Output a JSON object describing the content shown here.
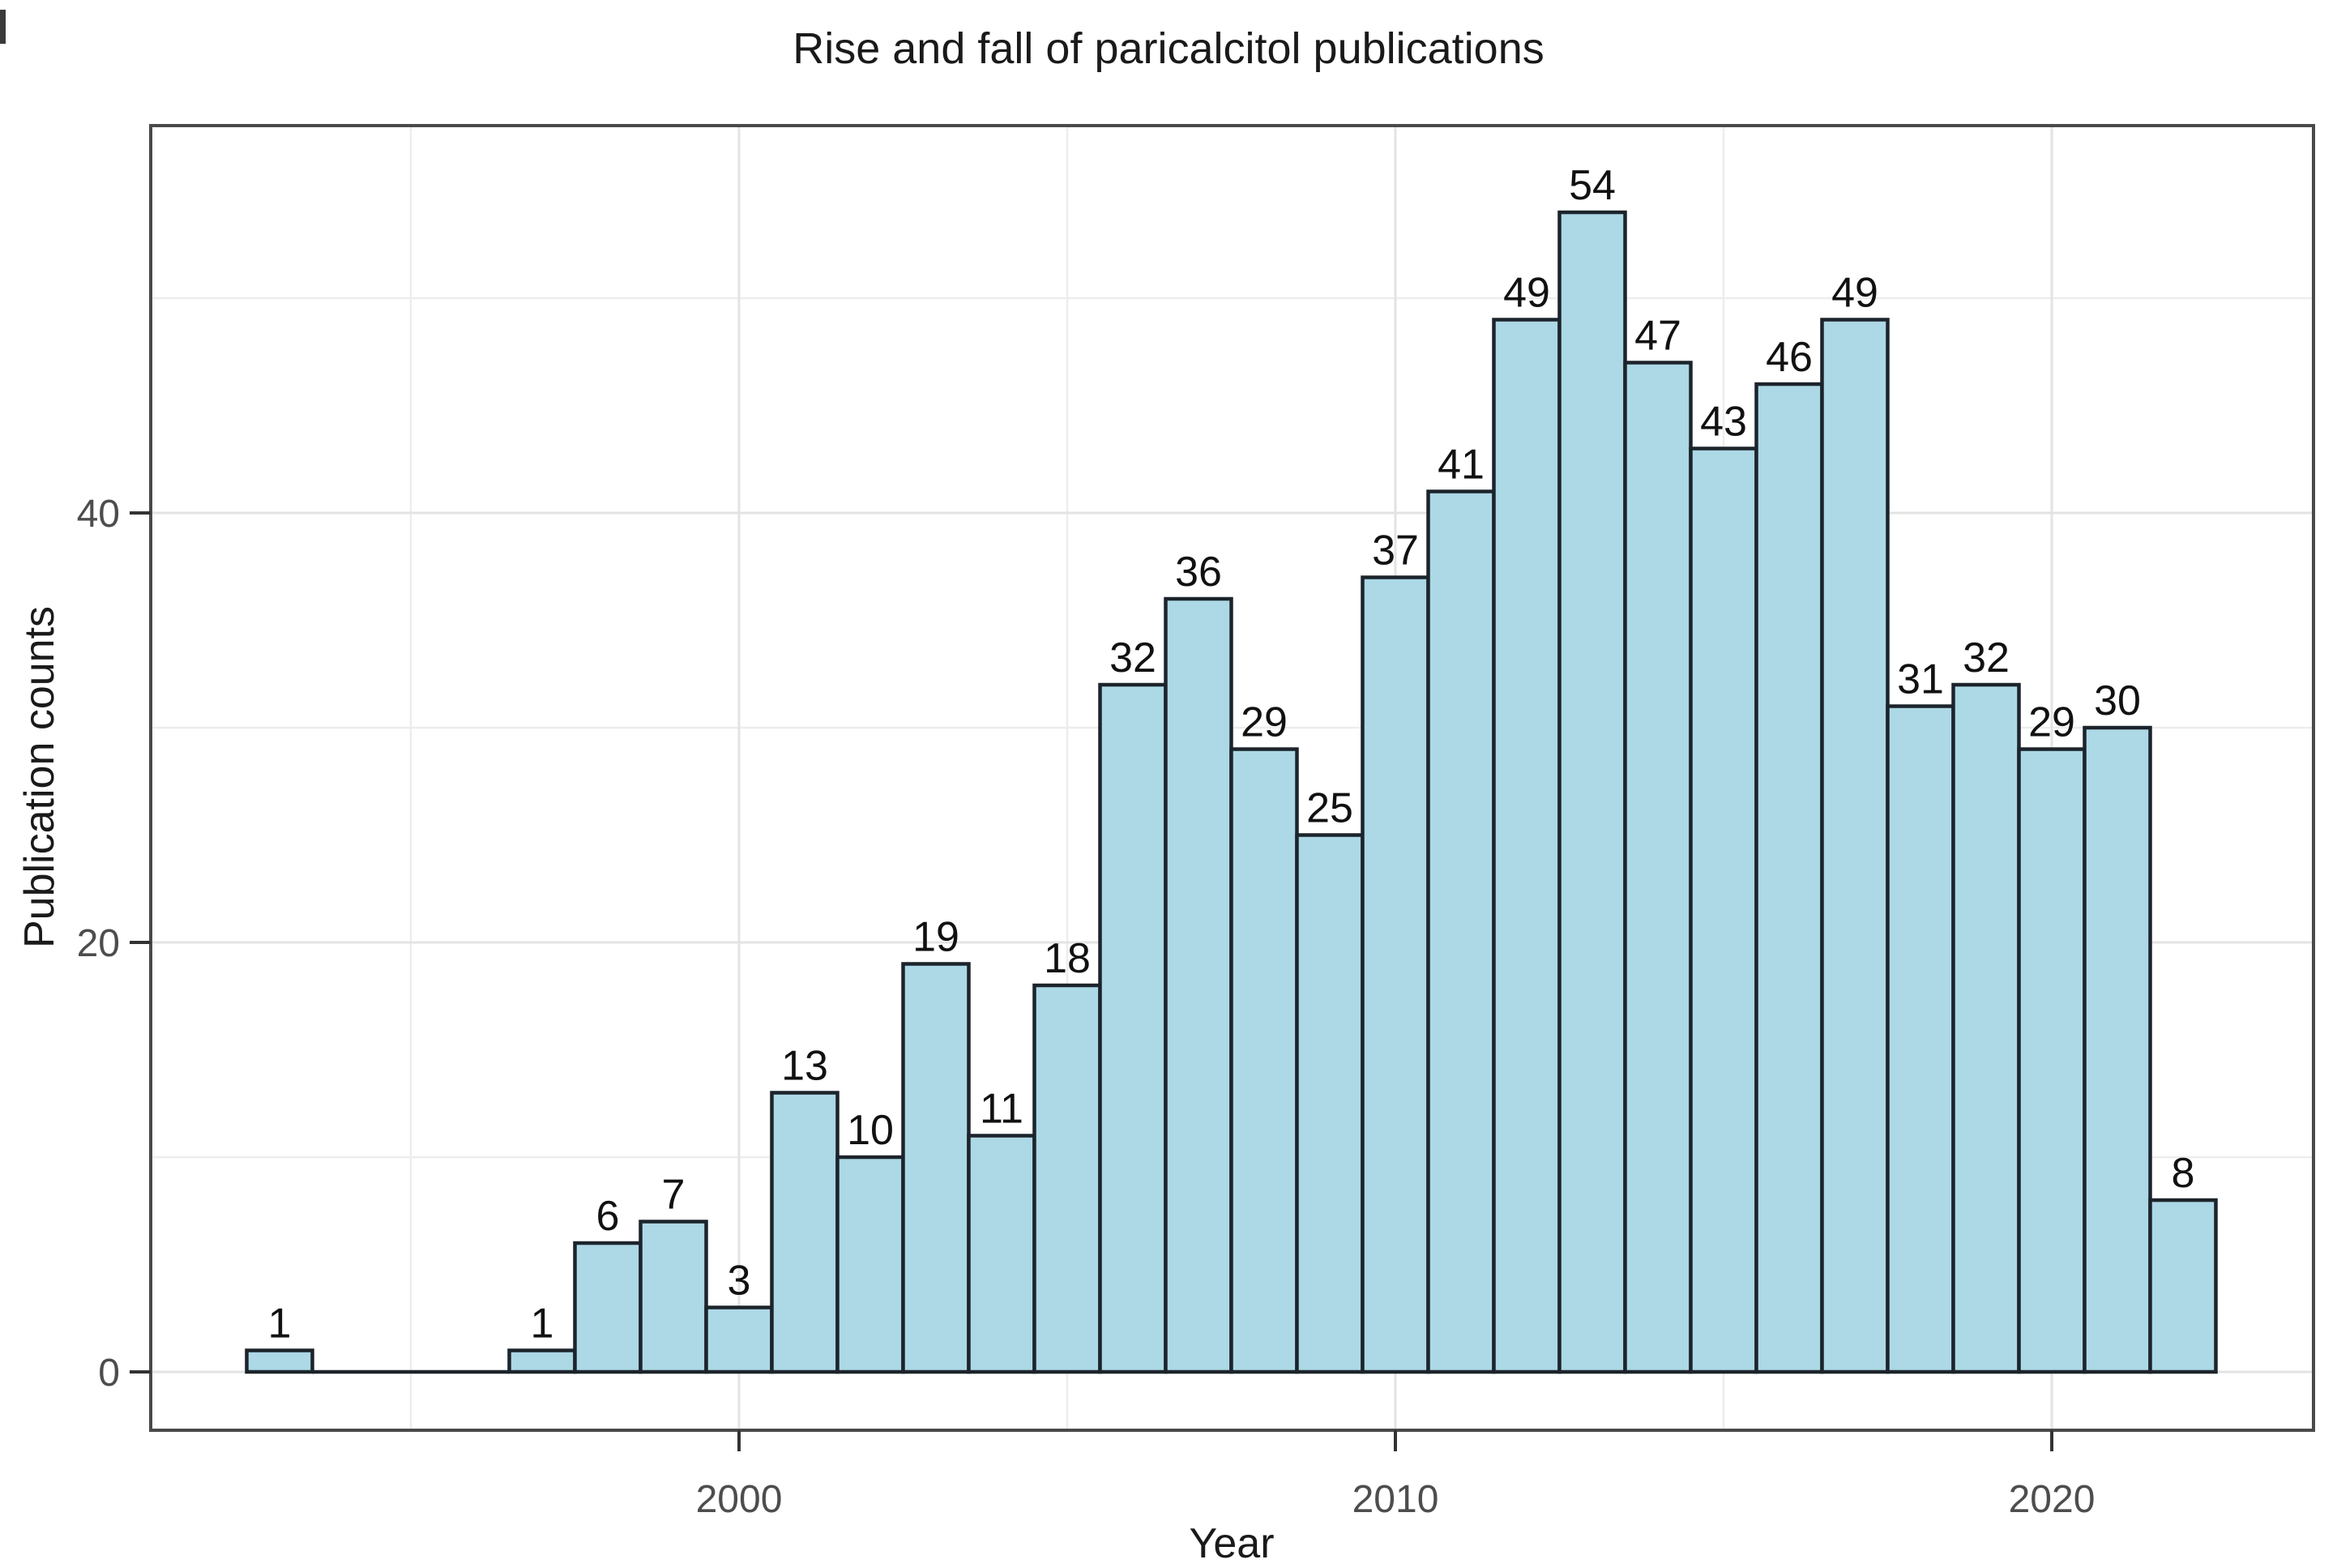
{
  "chart_data": {
    "type": "bar",
    "title": "Rise and fall of paricalcitol publications",
    "xlabel": "Year",
    "ylabel": "Publication counts",
    "categories": [
      1993,
      1994,
      1995,
      1996,
      1997,
      1998,
      1999,
      2000,
      2001,
      2002,
      2003,
      2004,
      2005,
      2006,
      2007,
      2008,
      2009,
      2010,
      2011,
      2012,
      2013,
      2014,
      2015,
      2016,
      2017,
      2018,
      2019,
      2020,
      2021,
      2022
    ],
    "values": [
      1,
      0,
      0,
      0,
      1,
      6,
      7,
      3,
      13,
      10,
      19,
      11,
      18,
      32,
      36,
      29,
      25,
      37,
      41,
      49,
      54,
      47,
      43,
      46,
      49,
      31,
      32,
      29,
      30,
      8
    ],
    "bar_width_years": 1,
    "x_major_ticks": [
      2000,
      2010,
      2020
    ],
    "x_minor_gridlines": [
      1995,
      2005,
      2015
    ],
    "y_major_ticks": [
      0,
      20,
      40
    ],
    "y_minor_gridlines": [
      10,
      30,
      50
    ],
    "xlim": [
      1991,
      2024
    ],
    "ylim": [
      -2.6,
      58
    ],
    "grid": "on",
    "legend": "none",
    "colors": {
      "bar_fill": "#ADD8E6",
      "bar_stroke": "#1c242b",
      "panel_border": "#4a4a4a",
      "grid_major": "#e3e3e3",
      "grid_minor": "#ededed",
      "tick_mark": "#333333",
      "tick_label": "#4d4d4d",
      "label_text": "#111111",
      "background": "#ffffff"
    }
  }
}
